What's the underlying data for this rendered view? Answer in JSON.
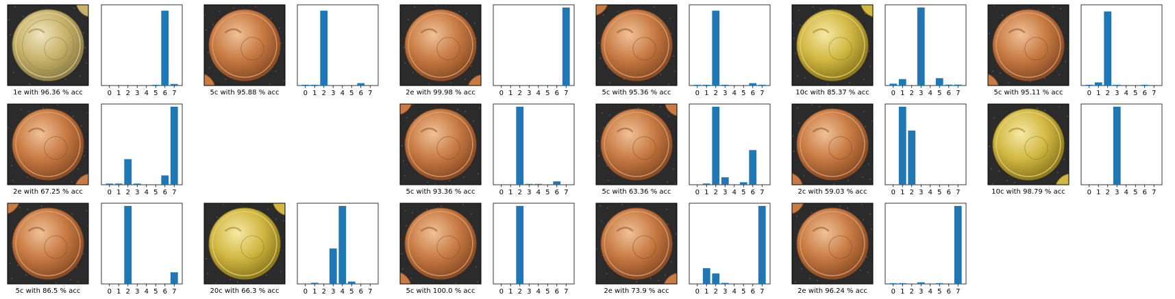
{
  "colors": {
    "bar": "#1f77b4",
    "axes": "#000000",
    "background": "#ffffff",
    "cloth": "#2b2b2b"
  },
  "chart_data": [
    {
      "panel": "r1c1",
      "type": "bar",
      "caption": "1e with 96.36 % acc",
      "coin_style": "bimetal",
      "categories": [
        "0",
        "1",
        "2",
        "3",
        "4",
        "5",
        "6",
        "7"
      ],
      "values": [
        0.0,
        0.0,
        0.0,
        0.0,
        0.0,
        0.01,
        0.96,
        0.02
      ],
      "ylim": [
        0,
        1
      ]
    },
    {
      "panel": "r1c2",
      "type": "bar",
      "caption": "5c with 95.88 % acc",
      "coin_style": "copper",
      "categories": [
        "0",
        "1",
        "2",
        "3",
        "4",
        "5",
        "6",
        "7"
      ],
      "values": [
        0.01,
        0.01,
        0.96,
        0.0,
        0.0,
        0.0,
        0.03,
        0.0
      ],
      "ylim": [
        0,
        1
      ]
    },
    {
      "panel": "r1c3",
      "type": "bar",
      "caption": "2e with 99.98 % acc",
      "coin_style": "copper",
      "categories": [
        "0",
        "1",
        "2",
        "3",
        "4",
        "5",
        "6",
        "7"
      ],
      "values": [
        0.0,
        0.0,
        0.0,
        0.0,
        0.0,
        0.0,
        0.0,
        1.0
      ],
      "ylim": [
        0,
        1
      ]
    },
    {
      "panel": "r1c4",
      "type": "bar",
      "caption": "5c with 95.36 % acc",
      "coin_style": "copper",
      "categories": [
        "0",
        "1",
        "2",
        "3",
        "4",
        "5",
        "6",
        "7"
      ],
      "values": [
        0.01,
        0.01,
        0.96,
        0.01,
        0.0,
        0.0,
        0.03,
        0.01
      ],
      "ylim": [
        0,
        1
      ]
    },
    {
      "panel": "r1c5",
      "type": "bar",
      "caption": "10c with 85.37 % acc",
      "coin_style": "gold",
      "categories": [
        "0",
        "1",
        "2",
        "3",
        "4",
        "5",
        "6",
        "7"
      ],
      "values": [
        0.02,
        0.07,
        0.0,
        0.85,
        0.0,
        0.08,
        0.01,
        0.01
      ],
      "ylim": [
        0,
        0.85
      ]
    },
    {
      "panel": "r1c6",
      "type": "bar",
      "caption": "5c with 95.11 % acc",
      "coin_style": "copper",
      "categories": [
        "0",
        "1",
        "2",
        "3",
        "4",
        "5",
        "6",
        "7"
      ],
      "values": [
        0.01,
        0.04,
        0.95,
        0.01,
        0.0,
        0.0,
        0.01,
        0.0
      ],
      "ylim": [
        0,
        1
      ]
    },
    {
      "panel": "r2c1",
      "type": "bar",
      "caption": "2e with 67.25 % acc",
      "coin_style": "copper",
      "categories": [
        "0",
        "1",
        "2",
        "3",
        "4",
        "5",
        "6",
        "7"
      ],
      "values": [
        0.01,
        0.01,
        0.22,
        0.01,
        0.0,
        0.0,
        0.08,
        0.67
      ],
      "ylim": [
        0,
        0.67
      ]
    },
    {
      "panel": "r2c3",
      "type": "bar",
      "caption": "5c with 93.36 % acc",
      "coin_style": "copper",
      "categories": [
        "0",
        "1",
        "2",
        "3",
        "4",
        "5",
        "6",
        "7"
      ],
      "values": [
        0.0,
        0.0,
        0.93,
        0.01,
        0.01,
        0.0,
        0.04,
        0.0
      ],
      "ylim": [
        0,
        0.93
      ]
    },
    {
      "panel": "r2c4",
      "type": "bar",
      "caption": "5c with 63.36 % acc",
      "coin_style": "copper",
      "categories": [
        "0",
        "1",
        "2",
        "3",
        "4",
        "5",
        "6",
        "7"
      ],
      "values": [
        0.0,
        0.01,
        0.63,
        0.06,
        0.0,
        0.02,
        0.28,
        0.0
      ],
      "ylim": [
        0,
        0.63
      ]
    },
    {
      "panel": "r2c5",
      "type": "bar",
      "caption": "2c with 59.03 % acc",
      "coin_style": "copper",
      "categories": [
        "0",
        "1",
        "2",
        "3",
        "4",
        "5",
        "6",
        "7"
      ],
      "values": [
        0.0,
        0.59,
        0.41,
        0.0,
        0.0,
        0.0,
        0.0,
        0.0
      ],
      "ylim": [
        0,
        0.59
      ]
    },
    {
      "panel": "r2c6",
      "type": "bar",
      "caption": "10c with 98.79 % acc",
      "coin_style": "gold",
      "categories": [
        "0",
        "1",
        "2",
        "3",
        "4",
        "5",
        "6",
        "7"
      ],
      "values": [
        0.0,
        0.0,
        0.0,
        0.99,
        0.0,
        0.0,
        0.0,
        0.0
      ],
      "ylim": [
        0,
        0.99
      ]
    },
    {
      "panel": "r3c1",
      "type": "bar",
      "caption": "5c with 86.5 % acc",
      "coin_style": "copper",
      "categories": [
        "0",
        "1",
        "2",
        "3",
        "4",
        "5",
        "6",
        "7"
      ],
      "values": [
        0.0,
        0.0,
        0.87,
        0.0,
        0.0,
        0.0,
        0.0,
        0.13
      ],
      "ylim": [
        0,
        0.87
      ]
    },
    {
      "panel": "r3c2",
      "type": "bar",
      "caption": "20c with 66.3 % acc",
      "coin_style": "gold",
      "categories": [
        "0",
        "1",
        "2",
        "3",
        "4",
        "5",
        "6",
        "7"
      ],
      "values": [
        0.0,
        0.01,
        0.0,
        0.3,
        0.66,
        0.02,
        0.0,
        0.0
      ],
      "ylim": [
        0,
        0.66
      ]
    },
    {
      "panel": "r3c3",
      "type": "bar",
      "caption": "5c with 100.0 % acc",
      "coin_style": "copper",
      "categories": [
        "0",
        "1",
        "2",
        "3",
        "4",
        "5",
        "6",
        "7"
      ],
      "values": [
        0.0,
        0.0,
        1.0,
        0.0,
        0.0,
        0.0,
        0.0,
        0.0
      ],
      "ylim": [
        0,
        1
      ]
    },
    {
      "panel": "r3c4",
      "type": "bar",
      "caption": "2e with 73.9 % acc",
      "coin_style": "copper",
      "categories": [
        "0",
        "1",
        "2",
        "3",
        "4",
        "5",
        "6",
        "7"
      ],
      "values": [
        0.0,
        0.15,
        0.1,
        0.01,
        0.0,
        0.0,
        0.0,
        0.74
      ],
      "ylim": [
        0,
        0.74
      ]
    },
    {
      "panel": "r3c5",
      "type": "bar",
      "caption": "2e with 96.24 % acc",
      "coin_style": "copper",
      "categories": [
        "0",
        "1",
        "2",
        "3",
        "4",
        "5",
        "6",
        "7"
      ],
      "values": [
        0.01,
        0.01,
        0.0,
        0.02,
        0.0,
        0.01,
        0.0,
        0.96
      ],
      "ylim": [
        0,
        0.96
      ]
    }
  ]
}
